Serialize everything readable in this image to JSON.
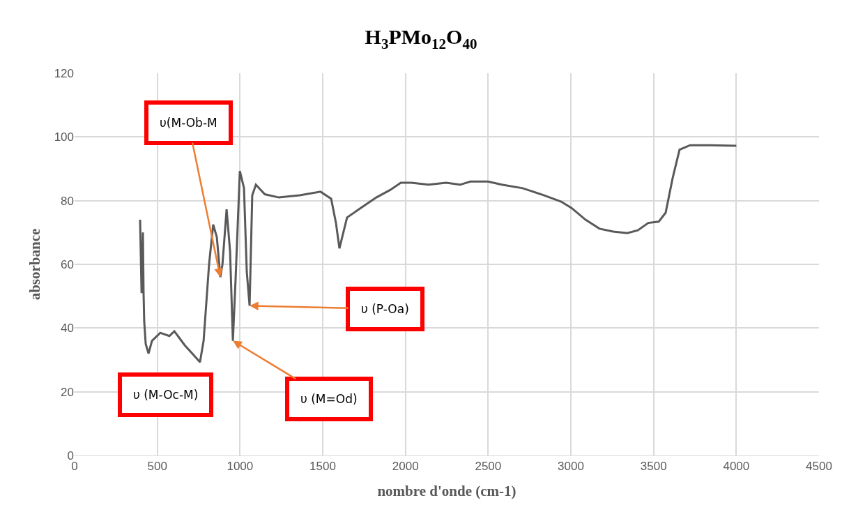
{
  "chart_data": {
    "type": "line",
    "title": "H$_{3}$PMo$_{12}$O$_{40}$",
    "xlabel": "nombre d'onde (cm-1)",
    "ylabel": "absorbance",
    "x": [
      396,
      405,
      413,
      417,
      421,
      430,
      447,
      468,
      518,
      573,
      603,
      666,
      729,
      758,
      780,
      813,
      838,
      860,
      881,
      894,
      919,
      940,
      957,
      973,
      999,
      1024,
      1041,
      1058,
      1074,
      1096,
      1150,
      1235,
      1361,
      1487,
      1551,
      1580,
      1601,
      1647,
      1719,
      1824,
      1909,
      1972,
      2035,
      2140,
      2246,
      2330,
      2393,
      2499,
      2583,
      2709,
      2836,
      2941,
      3004,
      3089,
      3173,
      3255,
      3341,
      3405,
      3468,
      3531,
      3573,
      3615,
      3657,
      3721,
      3847,
      3994,
      4000
    ],
    "series": [
      {
        "color": "#595959",
        "values": [
          74,
          51,
          70,
          51,
          42,
          35,
          32,
          36,
          38.5,
          37.5,
          39,
          34.6,
          31,
          29.3,
          36,
          60,
          72.5,
          68.5,
          56,
          60,
          77.3,
          64,
          36,
          55,
          89.3,
          84,
          57.6,
          47,
          81.7,
          85,
          82,
          81,
          81.7,
          82.8,
          80.6,
          73,
          65,
          74.7,
          77.3,
          81,
          83.4,
          85.6,
          85.6,
          85,
          85.6,
          85,
          86,
          86,
          85,
          83.9,
          81.7,
          79.7,
          77.7,
          74,
          71.2,
          70.3,
          69.8,
          70.7,
          73,
          73.4,
          76.2,
          87,
          96,
          97.4,
          97.4,
          97.2,
          97.2
        ]
      }
    ],
    "xlim": [
      0,
      4500
    ],
    "xticks": [
      0,
      500,
      1000,
      1500,
      2000,
      2500,
      3000,
      3500,
      4000,
      4500
    ],
    "ylim": [
      0,
      120
    ],
    "yticks": [
      0,
      20,
      40,
      60,
      80,
      100,
      120
    ],
    "grid": true,
    "line_style": "solid",
    "marker": "none",
    "annotations": [
      {
        "text": "υ(M-Ob-M",
        "x": 881,
        "y": 56
      },
      "υ (M-Oc-M)",
      {
        "text": "υ (M=Od)",
        "x": 957,
        "y": 36
      },
      {
        "text": "υ (P-Oa)",
        "x": 1058,
        "y": 47
      }
    ]
  }
}
